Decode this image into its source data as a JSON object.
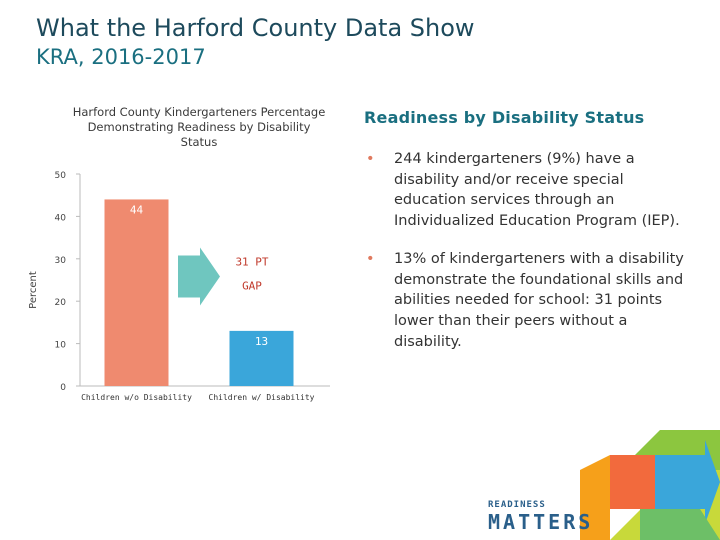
{
  "slide": {
    "title": "What the Harford County Data Show",
    "subtitle": "KRA, 2016-2017"
  },
  "chart_data": {
    "type": "bar",
    "title": "Harford County Kindergarteners Percentage Demonstrating Readiness by Disability Status",
    "ylabel": "Percent",
    "xlabel": "",
    "ylim": [
      0,
      50
    ],
    "yticks": [
      0,
      10,
      20,
      30,
      40,
      50
    ],
    "categories": [
      "Children w/o Disability",
      "Children w/ Disability"
    ],
    "values": [
      44,
      13
    ],
    "bar_colors": [
      "#ef8a6f",
      "#3aa6da"
    ],
    "data_labels": [
      "44",
      "13"
    ],
    "annotation": {
      "line1": "31 PT",
      "line2": "GAP",
      "color": "#5fc0b8"
    },
    "grid": false
  },
  "panel": {
    "heading": "Readiness by Disability Status",
    "bullets": [
      "244 kindergarteners (9%) have a disability and/or receive special education services through an Individualized Education Program (IEP).",
      "13% of kindergarteners with a disability demonstrate the foundational skills and abilities needed for school: 31 points lower than their peers without a disability."
    ],
    "bullet_char": "•"
  },
  "logo": {
    "line1": "READINESS",
    "line2": "MATTERS",
    "colors": [
      "#c8d93a",
      "#8cc63f",
      "#3aa6da",
      "#f26a3d",
      "#f6a01a",
      "#6dbf67"
    ]
  }
}
